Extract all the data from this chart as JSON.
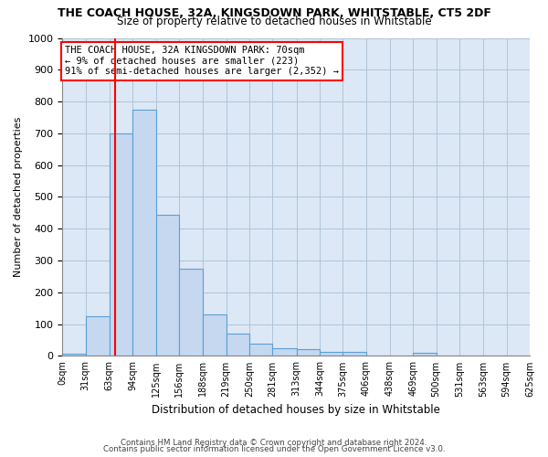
{
  "title": "THE COACH HOUSE, 32A, KINGSDOWN PARK, WHITSTABLE, CT5 2DF",
  "subtitle": "Size of property relative to detached houses in Whitstable",
  "xlabel": "Distribution of detached houses by size in Whitstable",
  "ylabel": "Number of detached properties",
  "bar_values": [
    8,
    125,
    700,
    775,
    443,
    275,
    132,
    70,
    40,
    25,
    22,
    13,
    13,
    0,
    0,
    10,
    0,
    0,
    0,
    0
  ],
  "bin_edges": [
    0,
    31,
    63,
    94,
    125,
    156,
    188,
    219,
    250,
    281,
    313,
    344,
    375,
    406,
    438,
    469,
    500,
    531,
    563,
    594,
    625
  ],
  "tick_labels": [
    "0sqm",
    "31sqm",
    "63sqm",
    "94sqm",
    "125sqm",
    "156sqm",
    "188sqm",
    "219sqm",
    "250sqm",
    "281sqm",
    "313sqm",
    "344sqm",
    "375sqm",
    "406sqm",
    "438sqm",
    "469sqm",
    "500sqm",
    "531sqm",
    "563sqm",
    "594sqm",
    "625sqm"
  ],
  "bar_color": "#c5d8f0",
  "bar_edge_color": "#5a9fd4",
  "red_line_x": 70,
  "annotation_line1": "THE COACH HOUSE, 32A KINGSDOWN PARK: 70sqm",
  "annotation_line2": "← 9% of detached houses are smaller (223)",
  "annotation_line3": "91% of semi-detached houses are larger (2,352) →",
  "annotation_box_color": "white",
  "annotation_box_edge": "red",
  "ylim": [
    0,
    1000
  ],
  "yticks": [
    0,
    100,
    200,
    300,
    400,
    500,
    600,
    700,
    800,
    900,
    1000
  ],
  "grid_color": "#b0c4d8",
  "background_color": "white",
  "plot_bg_color": "#dce8f5",
  "footer1": "Contains HM Land Registry data © Crown copyright and database right 2024.",
  "footer2": "Contains public sector information licensed under the Open Government Licence v3.0."
}
